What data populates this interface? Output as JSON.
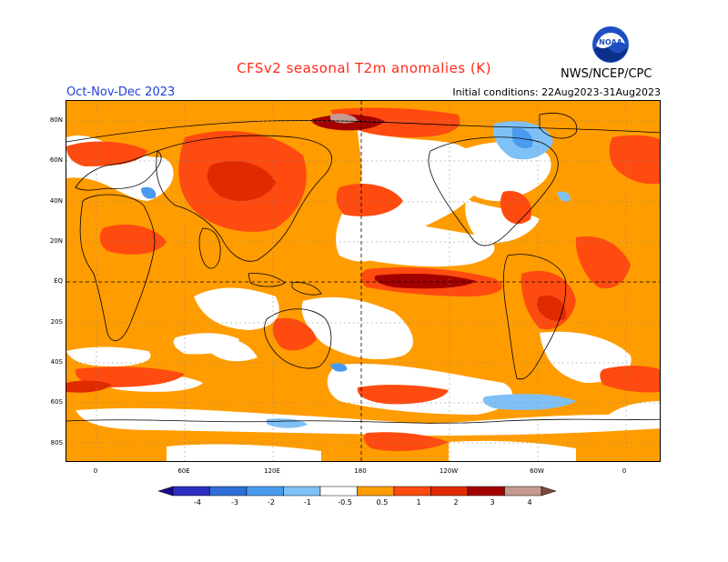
{
  "header": {
    "title": "CFSv2 seasonal T2m anomalies (K)",
    "season": "Oct-Nov-Dec 2023",
    "initial_conditions": "Initial conditions: 22Aug2023-31Aug2023",
    "agency": "NWS/NCEP/CPC",
    "logo_text": "NOAA"
  },
  "map": {
    "lat_labels": [
      "80N",
      "60N",
      "40N",
      "20N",
      "EQ",
      "20S",
      "40S",
      "60S",
      "80S"
    ],
    "lon_labels": [
      "0",
      "60E",
      "120E",
      "180",
      "120W",
      "60W",
      "0"
    ]
  },
  "colorbar": {
    "labels": [
      "-4",
      "-3",
      "-2",
      "-1",
      "-0.5",
      "0.5",
      "1",
      "2",
      "3",
      "4"
    ],
    "colors": [
      "#1a0c8c",
      "#2a2fc0",
      "#2f6ed8",
      "#4a9bf0",
      "#7fc1f7",
      "#ffffff",
      "#ff9c00",
      "#ff4a10",
      "#e02a00",
      "#a30000",
      "#c59a90",
      "#7a4a40"
    ]
  }
}
